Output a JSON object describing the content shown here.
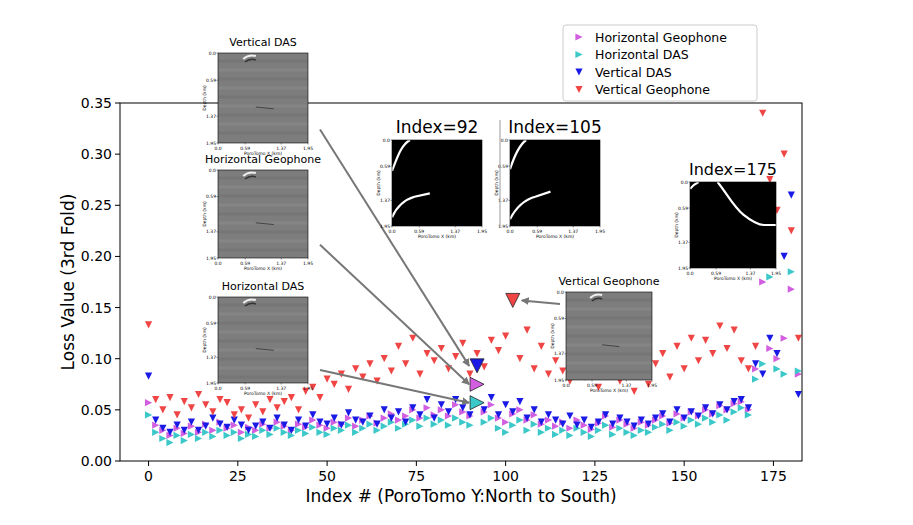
{
  "chart_data": {
    "type": "scatter",
    "xlabel": "Index # (PoroTomo Y:North to South)",
    "ylabel": "Loss Value (3rd Fold)",
    "xlim": [
      -8,
      183
    ],
    "ylim": [
      0,
      0.35
    ],
    "xticks": [
      0,
      25,
      50,
      75,
      100,
      125,
      150,
      175
    ],
    "yticks": [
      {
        "value": 0,
        "label": "0.00"
      },
      0.05,
      {
        "value": 0.1,
        "label": "0.10"
      },
      0.15,
      {
        "value": 0.2,
        "label": "0.20"
      },
      0.25,
      {
        "value": 0.3,
        "label": "0.30"
      },
      0.35
    ],
    "grid": false,
    "legend": "upper right",
    "x": [
      0,
      2,
      4,
      6,
      8,
      10,
      12,
      14,
      16,
      18,
      20,
      22,
      24,
      26,
      28,
      30,
      32,
      34,
      36,
      38,
      40,
      42,
      44,
      46,
      48,
      50,
      52,
      54,
      56,
      58,
      60,
      62,
      64,
      66,
      68,
      70,
      72,
      74,
      76,
      78,
      80,
      82,
      84,
      86,
      88,
      90,
      92,
      94,
      96,
      98,
      100,
      102,
      104,
      106,
      108,
      110,
      112,
      114,
      116,
      118,
      120,
      122,
      124,
      126,
      128,
      130,
      132,
      134,
      136,
      138,
      140,
      142,
      144,
      146,
      148,
      150,
      152,
      154,
      156,
      158,
      160,
      162,
      164,
      166,
      168,
      170,
      172,
      174,
      176,
      178,
      180,
      182
    ],
    "series": [
      {
        "name": "Horizontal Geophone",
        "color": "#d25fe0",
        "marker": "triangle-right",
        "values": [
          0.057,
          0.035,
          0.03,
          0.025,
          0.032,
          0.027,
          0.034,
          0.028,
          0.036,
          0.03,
          0.038,
          0.032,
          0.035,
          0.028,
          0.033,
          0.03,
          0.036,
          0.032,
          0.038,
          0.034,
          0.03,
          0.036,
          0.033,
          0.04,
          0.035,
          0.032,
          0.038,
          0.036,
          0.042,
          0.034,
          0.04,
          0.044,
          0.037,
          0.042,
          0.046,
          0.04,
          0.044,
          0.05,
          0.042,
          0.052,
          0.045,
          0.05,
          0.044,
          0.055,
          0.048,
          0.044,
          0.075,
          0.048,
          0.055,
          0.042,
          0.038,
          0.046,
          0.05,
          0.04,
          0.045,
          0.036,
          0.04,
          0.034,
          0.038,
          0.032,
          0.04,
          0.035,
          0.031,
          0.037,
          0.044,
          0.033,
          0.04,
          0.036,
          0.032,
          0.038,
          0.035,
          0.04,
          0.044,
          0.037,
          0.046,
          0.042,
          0.048,
          0.044,
          0.05,
          0.046,
          0.054,
          0.05,
          0.056,
          0.058,
          0.05,
          0.09,
          0.175,
          0.11,
          0.1,
          0.12,
          0.168,
          0.085
        ]
      },
      {
        "name": "Horizontal DAS",
        "color": "#3cc8c8",
        "marker": "triangle-right",
        "values": [
          0.045,
          0.028,
          0.022,
          0.018,
          0.025,
          0.02,
          0.026,
          0.022,
          0.028,
          0.024,
          0.03,
          0.025,
          0.028,
          0.022,
          0.026,
          0.024,
          0.03,
          0.026,
          0.032,
          0.028,
          0.025,
          0.03,
          0.027,
          0.033,
          0.028,
          0.026,
          0.032,
          0.03,
          0.035,
          0.028,
          0.032,
          0.036,
          0.03,
          0.034,
          0.038,
          0.032,
          0.036,
          0.04,
          0.034,
          0.042,
          0.036,
          0.04,
          0.035,
          0.042,
          0.038,
          0.035,
          0.057,
          0.038,
          0.042,
          0.032,
          0.028,
          0.035,
          0.04,
          0.03,
          0.036,
          0.028,
          0.032,
          0.026,
          0.03,
          0.025,
          0.032,
          0.028,
          0.024,
          0.03,
          0.035,
          0.026,
          0.032,
          0.028,
          0.025,
          0.03,
          0.028,
          0.033,
          0.036,
          0.03,
          0.038,
          0.034,
          0.04,
          0.036,
          0.042,
          0.038,
          0.045,
          0.04,
          0.048,
          0.052,
          0.045,
          0.08,
          0.095,
          0.18,
          0.09,
          0.085,
          0.185,
          0.088
        ]
      },
      {
        "name": "Vertical DAS",
        "color": "#1a1ae6",
        "marker": "triangle-down",
        "values": [
          0.083,
          0.04,
          0.032,
          0.028,
          0.035,
          0.03,
          0.038,
          0.03,
          0.034,
          0.042,
          0.036,
          0.033,
          0.04,
          0.035,
          0.03,
          0.034,
          0.038,
          0.032,
          0.042,
          0.035,
          0.03,
          0.04,
          0.034,
          0.045,
          0.038,
          0.036,
          0.042,
          0.035,
          0.047,
          0.04,
          0.038,
          0.044,
          0.036,
          0.05,
          0.042,
          0.048,
          0.038,
          0.052,
          0.045,
          0.06,
          0.042,
          0.055,
          0.048,
          0.06,
          0.052,
          0.045,
          0.093,
          0.05,
          0.062,
          0.045,
          0.055,
          0.048,
          0.058,
          0.042,
          0.05,
          0.038,
          0.045,
          0.04,
          0.036,
          0.044,
          0.035,
          0.04,
          0.033,
          0.038,
          0.045,
          0.036,
          0.042,
          0.038,
          0.034,
          0.04,
          0.036,
          0.042,
          0.046,
          0.038,
          0.05,
          0.042,
          0.048,
          0.044,
          0.052,
          0.046,
          0.055,
          0.05,
          0.058,
          0.06,
          0.052,
          0.095,
          0.085,
          0.12,
          0.105,
          0.2,
          0.26,
          0.065
        ]
      },
      {
        "name": "Vertical Geophone",
        "color": "#f04545",
        "marker": "triangle-down",
        "values": [
          0.133,
          0.06,
          0.05,
          0.062,
          0.045,
          0.058,
          0.052,
          0.065,
          0.055,
          0.048,
          0.06,
          0.057,
          0.045,
          0.05,
          0.042,
          0.055,
          0.048,
          0.06,
          0.052,
          0.058,
          0.062,
          0.05,
          0.068,
          0.072,
          0.062,
          0.08,
          0.075,
          0.085,
          0.07,
          0.09,
          0.082,
          0.095,
          0.078,
          0.1,
          0.088,
          0.112,
          0.095,
          0.12,
          0.085,
          0.105,
          0.098,
          0.11,
          0.09,
          0.102,
          0.115,
          0.085,
          0.105,
          0.092,
          0.118,
          0.108,
          0.122,
          0.157,
          0.1,
          0.128,
          0.09,
          0.112,
          0.085,
          0.098,
          0.088,
          0.078,
          0.095,
          0.082,
          0.09,
          0.072,
          0.085,
          0.1,
          0.078,
          0.092,
          0.068,
          0.088,
          0.075,
          0.095,
          0.105,
          0.082,
          0.112,
          0.09,
          0.12,
          0.098,
          0.118,
          0.105,
          0.132,
          0.11,
          0.128,
          0.098,
          0.09,
          0.112,
          0.34,
          0.275,
          0.245,
          0.3,
          0.225,
          0.12
        ]
      }
    ],
    "inset_axis": {
      "xlabel": "PoroTomo X (km)",
      "ylabel": "Depth (km)",
      "xlim": [
        0,
        1.95
      ],
      "ylim": [
        0,
        1.95
      ],
      "xticks": [
        {
          "value": 0,
          "label": "0.0"
        },
        0.59,
        1.37,
        1.95
      ],
      "yticks": [
        {
          "value": 0,
          "label": "0.0"
        },
        0.59,
        1.37,
        1.95
      ]
    },
    "insets": [
      {
        "title": "Vertical DAS",
        "kind": "gather",
        "series": "Vertical DAS",
        "x": 92
      },
      {
        "title": "Horizontal Geophone",
        "kind": "gather",
        "series": "Horizontal Geophone",
        "x": 92
      },
      {
        "title": "Horizontal DAS",
        "kind": "gather",
        "series": "Horizontal DAS",
        "x": 92
      },
      {
        "title": "Index=92",
        "kind": "mask"
      },
      {
        "title": "Index=105",
        "kind": "mask"
      },
      {
        "title": "Index=175",
        "kind": "mask"
      },
      {
        "title": "Vertical Geophone",
        "kind": "gather",
        "series": "Vertical Geophone",
        "x": 102
      }
    ]
  }
}
